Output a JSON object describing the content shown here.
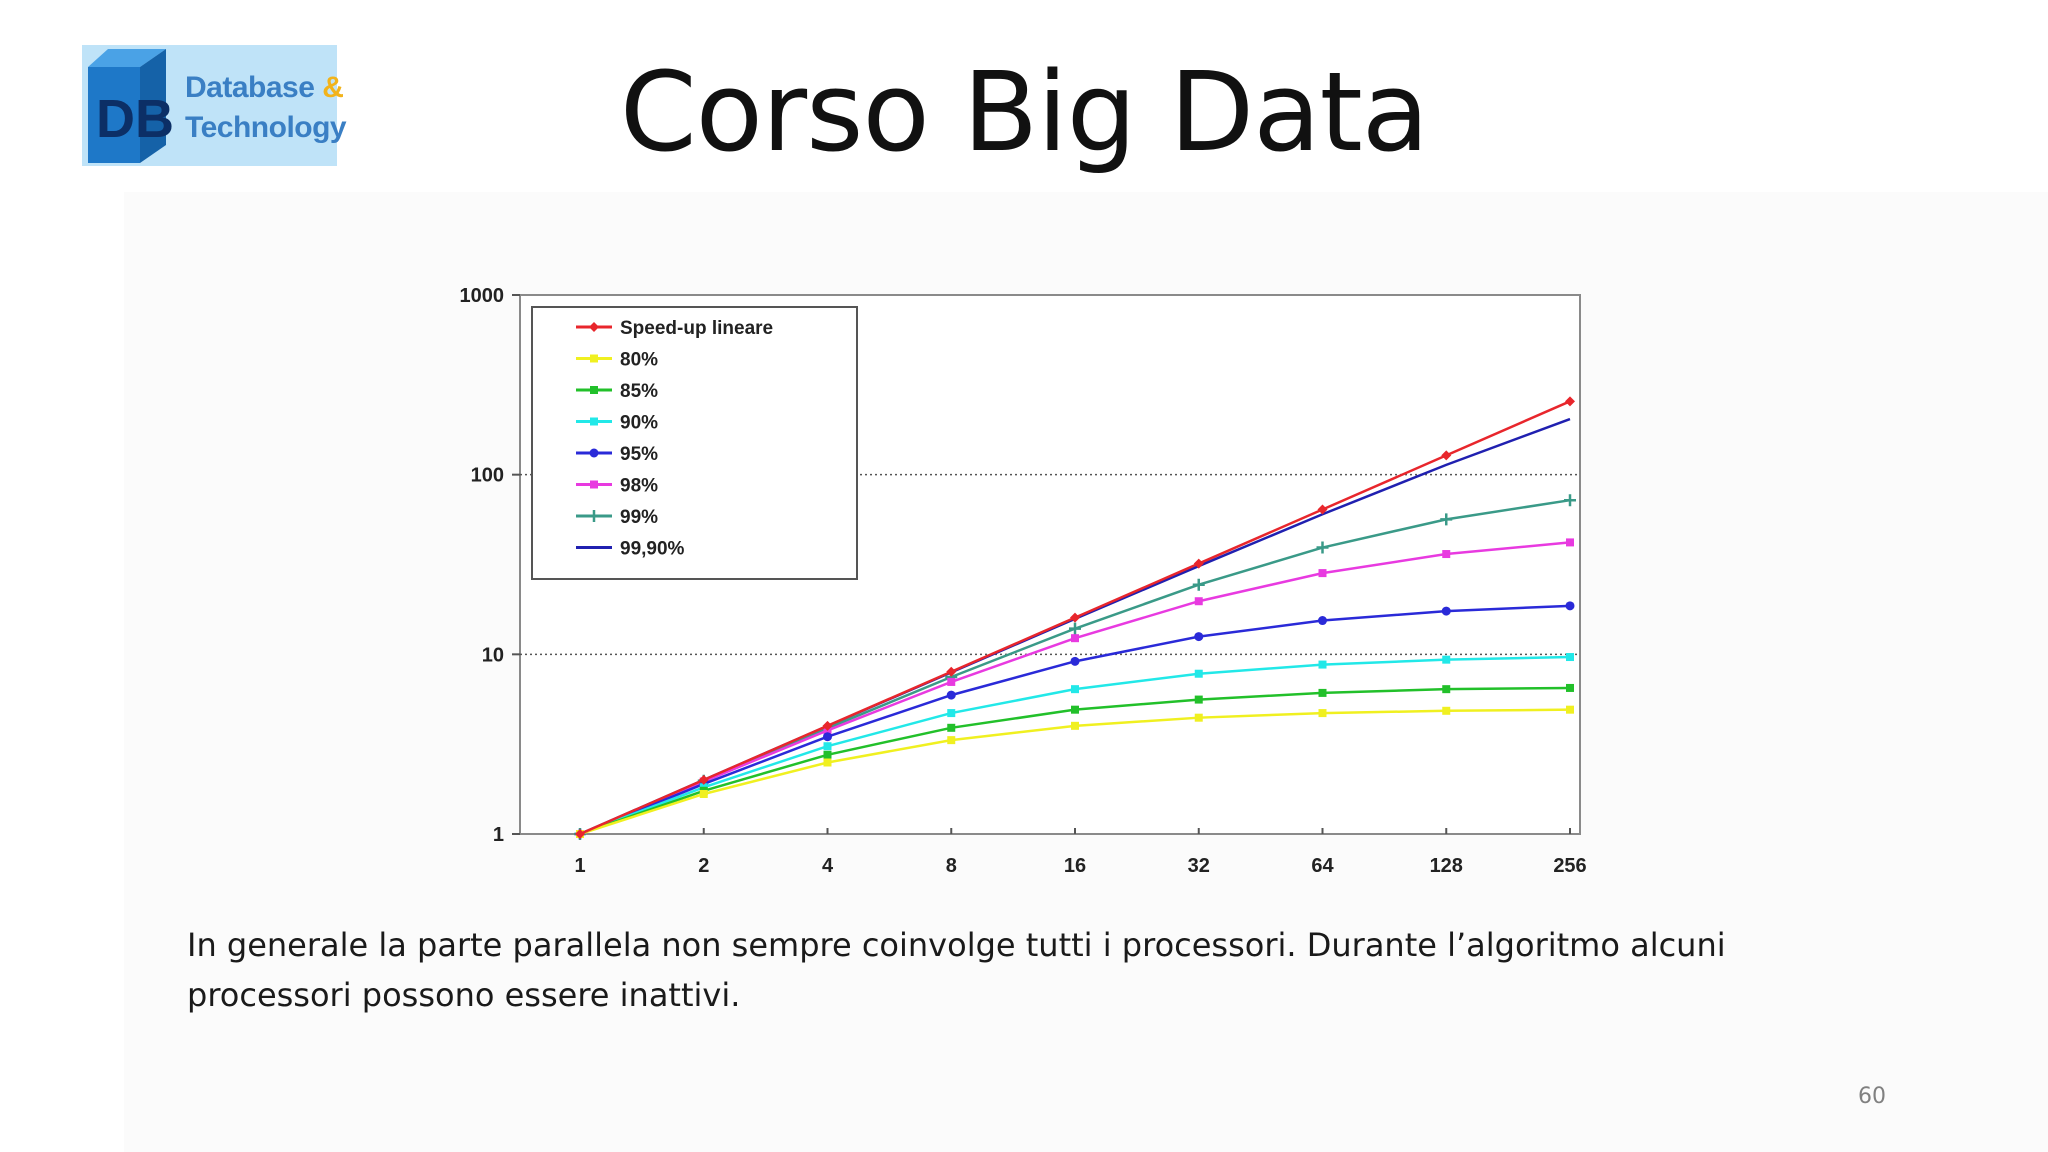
{
  "slide": {
    "title": "Corso Big Data",
    "logo": {
      "line1": "Database",
      "amp": "&",
      "line2": "Technology",
      "cube_text": "DB"
    },
    "body_text": "In  generale la parte parallela non sempre coinvolge tutti i processori. Durante l’algoritmo alcuni processori possono essere inattivi.",
    "page_number": "60"
  },
  "chart_data": {
    "type": "line",
    "title": "",
    "xlabel": "",
    "ylabel": "",
    "x_scale": "log2",
    "y_scale": "log10",
    "categories": [
      "1",
      "2",
      "4",
      "8",
      "16",
      "32",
      "64",
      "128",
      "256"
    ],
    "x": [
      1,
      2,
      4,
      8,
      16,
      32,
      64,
      128,
      256
    ],
    "ylim": [
      1,
      1000
    ],
    "y_ticks": [
      "1",
      "10",
      "100",
      "1000"
    ],
    "grid": "dotted horizontal at 10 and 100",
    "legend_position": "top-left",
    "series": [
      {
        "name": "Speed-up lineare",
        "color": "#e8262c",
        "marker": "diamond",
        "values": [
          1,
          2,
          4,
          8,
          16,
          32,
          64,
          128,
          256
        ]
      },
      {
        "name": "80%",
        "color": "#f0f020",
        "marker": "square",
        "values": [
          1,
          1.67,
          2.5,
          3.33,
          4.0,
          4.44,
          4.71,
          4.85,
          4.92
        ]
      },
      {
        "name": "85%",
        "color": "#22c02a",
        "marker": "square",
        "values": [
          1,
          1.74,
          2.76,
          3.9,
          4.92,
          5.6,
          6.1,
          6.4,
          6.5
        ]
      },
      {
        "name": "90%",
        "color": "#22e8e8",
        "marker": "square",
        "values": [
          1,
          1.82,
          3.08,
          4.71,
          6.4,
          7.8,
          8.77,
          9.34,
          9.66
        ]
      },
      {
        "name": "95%",
        "color": "#2a2ad8",
        "marker": "circle",
        "values": [
          1,
          1.9,
          3.48,
          5.93,
          9.14,
          12.55,
          15.42,
          17.41,
          18.62
        ]
      },
      {
        "name": "98%",
        "color": "#e83ae0",
        "marker": "square",
        "values": [
          1,
          1.96,
          3.77,
          7.02,
          12.3,
          19.75,
          28.32,
          36.16,
          41.97
        ]
      },
      {
        "name": "99%",
        "color": "#3a9a88",
        "marker": "cross",
        "values": [
          1,
          1.98,
          3.88,
          7.48,
          13.9,
          24.4,
          39.3,
          56.4,
          72.1
        ]
      },
      {
        "name": "99,90%",
        "color": "#2020b0",
        "marker": "none",
        "values": [
          1,
          2.0,
          3.99,
          7.94,
          15.76,
          31.0,
          60.2,
          113.4,
          204.0
        ]
      }
    ]
  }
}
